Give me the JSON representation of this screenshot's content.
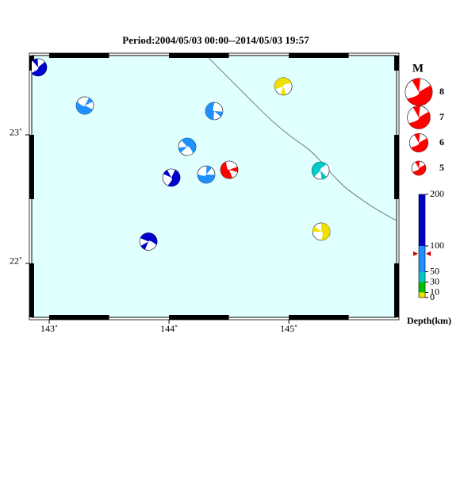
{
  "title": "Period:2004/05/03 00:00--2014/05/03 19:57",
  "map": {
    "xlim": [
      142.854,
      145.9
    ],
    "ylim": [
      21.58,
      23.617
    ],
    "xticks": [
      {
        "value": 143,
        "label": "143˚"
      },
      {
        "value": 144,
        "label": "144˚"
      },
      {
        "value": 145,
        "label": "145˚"
      }
    ],
    "yticks": [
      {
        "value": 22,
        "label": "22˚"
      },
      {
        "value": 23,
        "label": "23˚"
      }
    ],
    "events": [
      {
        "lon": 142.907,
        "lat": 23.525,
        "color": "#0000cc"
      },
      {
        "lon": 143.298,
        "lat": 23.228,
        "color": "#1e90ff"
      },
      {
        "lon": 144.377,
        "lat": 23.185,
        "color": "#1e90ff"
      },
      {
        "lon": 144.954,
        "lat": 23.377,
        "color": "#f0e000"
      },
      {
        "lon": 144.152,
        "lat": 22.907,
        "color": "#1e90ff"
      },
      {
        "lon": 144.02,
        "lat": 22.667,
        "color": "#0000cc"
      },
      {
        "lon": 144.311,
        "lat": 22.691,
        "color": "#1e90ff"
      },
      {
        "lon": 144.503,
        "lat": 22.728,
        "color": "#ff0000"
      },
      {
        "lon": 145.265,
        "lat": 22.722,
        "color": "#00c8c8"
      },
      {
        "lon": 143.828,
        "lat": 22.17,
        "color": "#0000cc"
      },
      {
        "lon": 145.272,
        "lat": 22.247,
        "color": "#f0e000"
      }
    ]
  },
  "magnitude_legend": {
    "title": "M",
    "values": [
      8,
      7,
      6,
      5
    ]
  },
  "depth_scale": {
    "label": "Depth(km)",
    "lim": [
      0,
      200
    ],
    "ticks": [
      0,
      10,
      30,
      50,
      100,
      200
    ],
    "colors": [
      "#f0e000",
      "#00c000",
      "#00c8c8",
      "#1e90ff",
      "#0000cc"
    ],
    "marker": 85
  }
}
